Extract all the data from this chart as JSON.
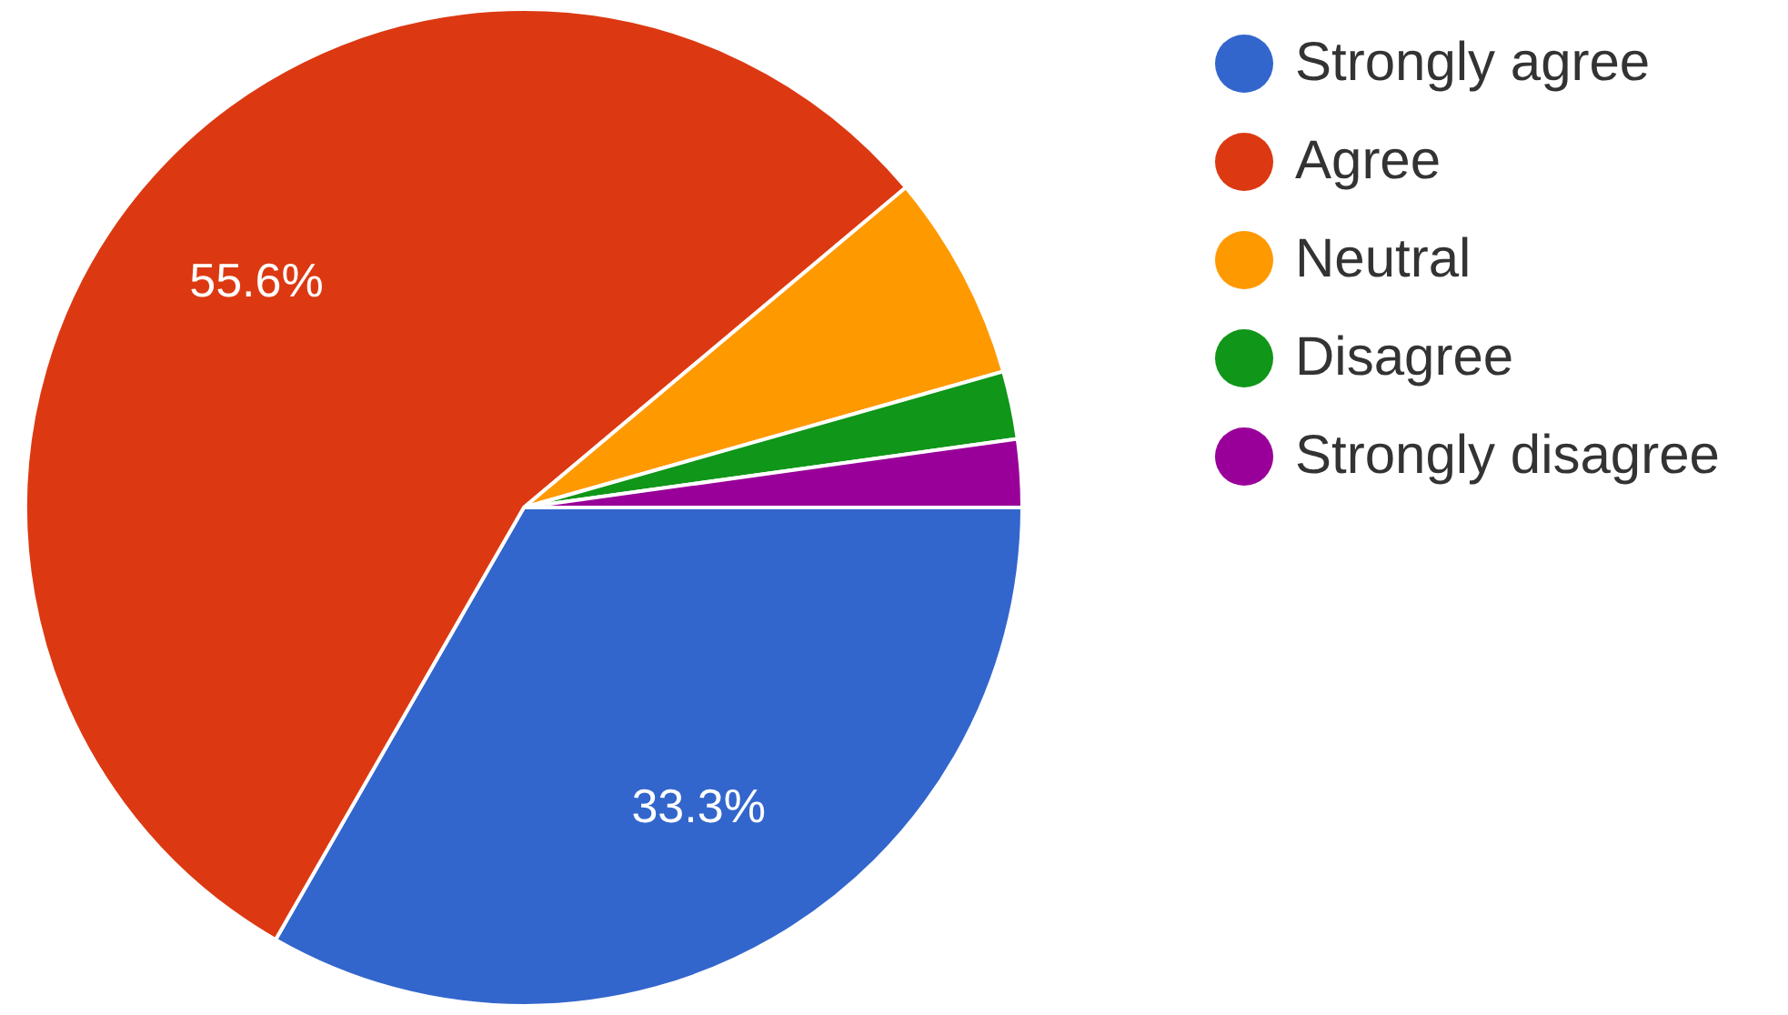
{
  "chart_data": {
    "type": "pie",
    "categories": [
      "Strongly agree",
      "Agree",
      "Neutral",
      "Disagree",
      "Strongly disagree"
    ],
    "values": [
      33.3,
      55.6,
      6.7,
      2.2,
      2.2
    ],
    "colors": [
      "#3366cc",
      "#dc3912",
      "#ff9900",
      "#109618",
      "#990099"
    ],
    "value_labels": [
      "33.3%",
      "55.6%",
      null,
      null,
      null
    ],
    "legend": "top right"
  }
}
